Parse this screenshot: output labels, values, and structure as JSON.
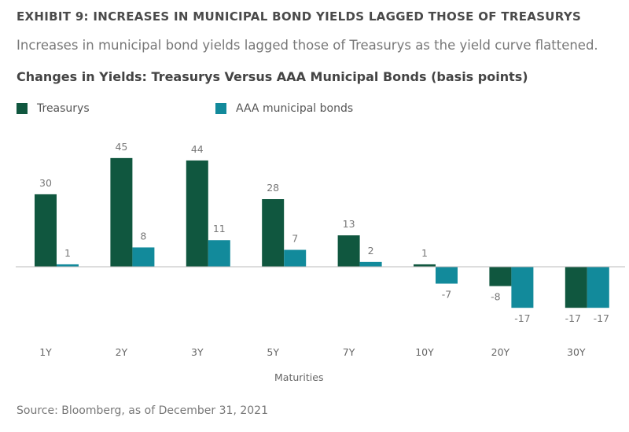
{
  "header": {
    "exhibit": "EXHIBIT 9: INCREASES IN MUNICIPAL BOND YIELDS LAGGED THOSE OF TREASURYS",
    "subtitle": "Increases in municipal bond yields lagged those of Treasurys as the yield curve flattened."
  },
  "source": "Source: Bloomberg, as of December 31, 2021",
  "chart_data": {
    "type": "bar",
    "title": "Changes in Yields: Treasurys Versus AAA Municipal Bonds (basis points)",
    "xlabel": "Maturities",
    "ylabel": "",
    "categories": [
      "1Y",
      "2Y",
      "3Y",
      "5Y",
      "7Y",
      "10Y",
      "20Y",
      "30Y"
    ],
    "series": [
      {
        "name": "Treasurys",
        "color": "#10573f",
        "values": [
          30,
          45,
          44,
          28,
          13,
          1,
          -8,
          -17
        ]
      },
      {
        "name": "AAA municipal bonds",
        "color": "#128a9b",
        "values": [
          1,
          8,
          11,
          7,
          2,
          -7,
          -17,
          -17
        ]
      }
    ],
    "legend": "top-left",
    "grid": false
  }
}
